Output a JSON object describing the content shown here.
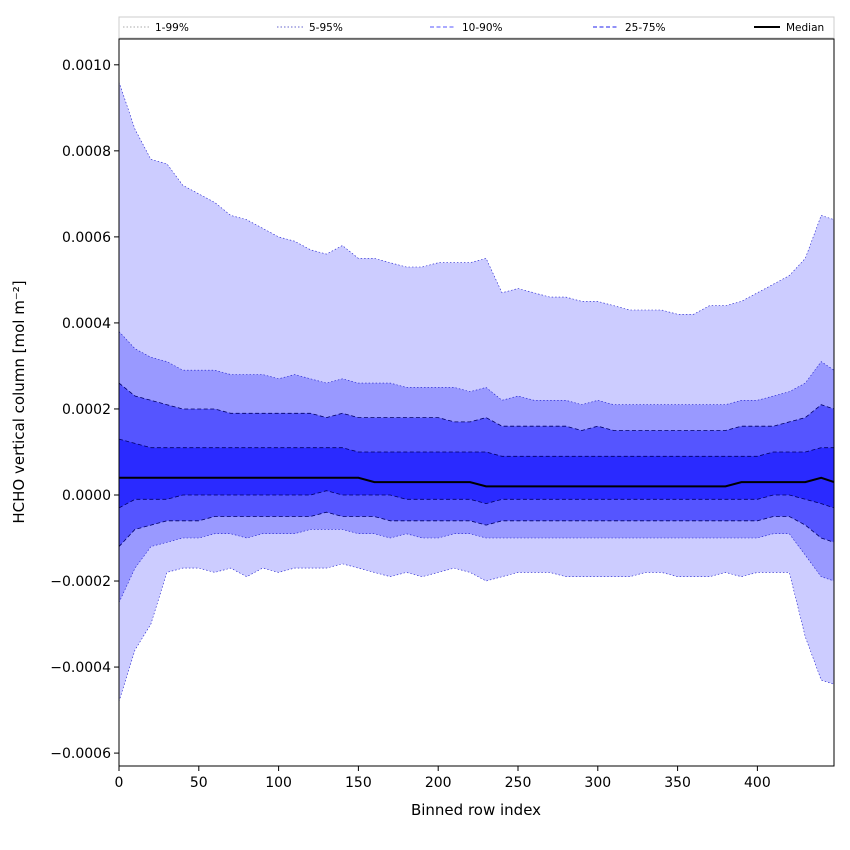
{
  "chart_data": {
    "type": "area",
    "title": "",
    "xlabel": "Binned row index",
    "ylabel": "HCHO vertical column [mol m⁻²]",
    "xlim": [
      0,
      448
    ],
    "ylim": [
      -0.00063,
      0.00106
    ],
    "xticks": [
      0,
      50,
      100,
      150,
      200,
      250,
      300,
      350,
      400
    ],
    "yticks": [
      -0.0006,
      -0.0004,
      -0.0002,
      0.0,
      0.0002,
      0.0004,
      0.0006,
      0.0008,
      0.001
    ],
    "ytick_labels": [
      "−0.0006",
      "−0.0004",
      "−0.0002",
      "0.0000",
      "0.0002",
      "0.0004",
      "0.0006",
      "0.0008",
      "0.0010"
    ],
    "grid": false,
    "legend_placement": "top (above plot, single row)",
    "x": [
      0,
      10,
      20,
      30,
      40,
      50,
      60,
      70,
      80,
      90,
      100,
      110,
      120,
      130,
      140,
      150,
      160,
      170,
      180,
      190,
      200,
      210,
      220,
      230,
      240,
      250,
      260,
      270,
      280,
      290,
      300,
      310,
      320,
      330,
      340,
      350,
      360,
      370,
      380,
      390,
      400,
      410,
      420,
      430,
      440,
      448
    ],
    "series": [
      {
        "name": "1-99%",
        "color": "#ccccff",
        "style": "dotted",
        "lower": [
          -0.00048,
          -0.00036,
          -0.0003,
          -0.00018,
          -0.00017,
          -0.00017,
          -0.00018,
          -0.00017,
          -0.00019,
          -0.00017,
          -0.00018,
          -0.00017,
          -0.00017,
          -0.00017,
          -0.00016,
          -0.00017,
          -0.00018,
          -0.00019,
          -0.00018,
          -0.00019,
          -0.00018,
          -0.00017,
          -0.00018,
          -0.0002,
          -0.00019,
          -0.00018,
          -0.00018,
          -0.00018,
          -0.00019,
          -0.00019,
          -0.00019,
          -0.00019,
          -0.00019,
          -0.00018,
          -0.00018,
          -0.00019,
          -0.00019,
          -0.00019,
          -0.00018,
          -0.00019,
          -0.00018,
          -0.00018,
          -0.00018,
          -0.00033,
          -0.00043,
          -0.00044
        ],
        "upper": [
          0.00096,
          0.00085,
          0.00078,
          0.00077,
          0.00072,
          0.0007,
          0.00068,
          0.00065,
          0.00064,
          0.00062,
          0.0006,
          0.00059,
          0.00057,
          0.00056,
          0.00058,
          0.00055,
          0.00055,
          0.00054,
          0.00053,
          0.00053,
          0.00054,
          0.00054,
          0.00054,
          0.00055,
          0.00047,
          0.00048,
          0.00047,
          0.00046,
          0.00046,
          0.00045,
          0.00045,
          0.00044,
          0.00043,
          0.00043,
          0.00043,
          0.00042,
          0.00042,
          0.00044,
          0.00044,
          0.00045,
          0.00047,
          0.00049,
          0.00051,
          0.00055,
          0.00065,
          0.00064
        ]
      },
      {
        "name": "5-95%",
        "color": "#9999ff",
        "style": "dotted",
        "lower": [
          -0.00025,
          -0.00017,
          -0.00012,
          -0.00011,
          -0.0001,
          -0.0001,
          -9e-05,
          -9e-05,
          -0.0001,
          -9e-05,
          -9e-05,
          -9e-05,
          -8e-05,
          -8e-05,
          -8e-05,
          -9e-05,
          -9e-05,
          -0.0001,
          -9e-05,
          -0.0001,
          -0.0001,
          -9e-05,
          -9e-05,
          -0.0001,
          -0.0001,
          -0.0001,
          -0.0001,
          -0.0001,
          -0.0001,
          -0.0001,
          -0.0001,
          -0.0001,
          -0.0001,
          -0.0001,
          -0.0001,
          -0.0001,
          -0.0001,
          -0.0001,
          -0.0001,
          -0.0001,
          -0.0001,
          -9e-05,
          -9e-05,
          -0.00014,
          -0.00019,
          -0.0002
        ],
        "upper": [
          0.00038,
          0.00034,
          0.00032,
          0.00031,
          0.00029,
          0.00029,
          0.00029,
          0.00028,
          0.00028,
          0.00028,
          0.00027,
          0.00028,
          0.00027,
          0.00026,
          0.00027,
          0.00026,
          0.00026,
          0.00026,
          0.00025,
          0.00025,
          0.00025,
          0.00025,
          0.00024,
          0.00025,
          0.00022,
          0.00023,
          0.00022,
          0.00022,
          0.00022,
          0.00021,
          0.00022,
          0.00021,
          0.00021,
          0.00021,
          0.00021,
          0.00021,
          0.00021,
          0.00021,
          0.00021,
          0.00022,
          0.00022,
          0.00023,
          0.00024,
          0.00026,
          0.00031,
          0.00029
        ]
      },
      {
        "name": "10-90%",
        "color": "#5555ff",
        "style": "dashed",
        "lower": [
          -0.00012,
          -8e-05,
          -7e-05,
          -6e-05,
          -6e-05,
          -6e-05,
          -5e-05,
          -5e-05,
          -5e-05,
          -5e-05,
          -5e-05,
          -5e-05,
          -5e-05,
          -4e-05,
          -5e-05,
          -5e-05,
          -5e-05,
          -6e-05,
          -6e-05,
          -6e-05,
          -6e-05,
          -6e-05,
          -6e-05,
          -7e-05,
          -6e-05,
          -6e-05,
          -6e-05,
          -6e-05,
          -6e-05,
          -6e-05,
          -6e-05,
          -6e-05,
          -6e-05,
          -6e-05,
          -6e-05,
          -6e-05,
          -6e-05,
          -6e-05,
          -6e-05,
          -6e-05,
          -6e-05,
          -5e-05,
          -5e-05,
          -7e-05,
          -0.0001,
          -0.00011
        ],
        "upper": [
          0.00026,
          0.00023,
          0.00022,
          0.00021,
          0.0002,
          0.0002,
          0.0002,
          0.00019,
          0.00019,
          0.00019,
          0.00019,
          0.00019,
          0.00019,
          0.00018,
          0.00019,
          0.00018,
          0.00018,
          0.00018,
          0.00018,
          0.00018,
          0.00018,
          0.00017,
          0.00017,
          0.00018,
          0.00016,
          0.00016,
          0.00016,
          0.00016,
          0.00016,
          0.00015,
          0.00016,
          0.00015,
          0.00015,
          0.00015,
          0.00015,
          0.00015,
          0.00015,
          0.00015,
          0.00015,
          0.00016,
          0.00016,
          0.00016,
          0.00017,
          0.00018,
          0.00021,
          0.0002
        ]
      },
      {
        "name": "25-75%",
        "color": "#2a2aff",
        "style": "dashed",
        "lower": [
          -3e-05,
          -1e-05,
          -1e-05,
          -1e-05,
          0.0,
          0.0,
          0.0,
          0.0,
          0.0,
          0.0,
          0.0,
          0.0,
          0.0,
          1e-05,
          0.0,
          0.0,
          0.0,
          0.0,
          -1e-05,
          -1e-05,
          -1e-05,
          -1e-05,
          -1e-05,
          -2e-05,
          -1e-05,
          -1e-05,
          -1e-05,
          -1e-05,
          -1e-05,
          -1e-05,
          -1e-05,
          -1e-05,
          -1e-05,
          -1e-05,
          -1e-05,
          -1e-05,
          -1e-05,
          -1e-05,
          -1e-05,
          -1e-05,
          -1e-05,
          0.0,
          0.0,
          -1e-05,
          -2e-05,
          -3e-05
        ],
        "upper": [
          0.00013,
          0.00012,
          0.00011,
          0.00011,
          0.00011,
          0.00011,
          0.00011,
          0.00011,
          0.00011,
          0.00011,
          0.00011,
          0.00011,
          0.00011,
          0.00011,
          0.00011,
          0.0001,
          0.0001,
          0.0001,
          0.0001,
          0.0001,
          0.0001,
          0.0001,
          0.0001,
          0.0001,
          9e-05,
          9e-05,
          9e-05,
          9e-05,
          9e-05,
          9e-05,
          9e-05,
          9e-05,
          9e-05,
          9e-05,
          9e-05,
          9e-05,
          9e-05,
          9e-05,
          9e-05,
          9e-05,
          9e-05,
          0.0001,
          0.0001,
          0.0001,
          0.00011,
          0.00011
        ]
      },
      {
        "name": "Median",
        "color": "#000000",
        "style": "solid",
        "values": [
          4e-05,
          4e-05,
          4e-05,
          4e-05,
          4e-05,
          4e-05,
          4e-05,
          4e-05,
          4e-05,
          4e-05,
          4e-05,
          4e-05,
          4e-05,
          4e-05,
          4e-05,
          4e-05,
          3e-05,
          3e-05,
          3e-05,
          3e-05,
          3e-05,
          3e-05,
          3e-05,
          2e-05,
          2e-05,
          2e-05,
          2e-05,
          2e-05,
          2e-05,
          2e-05,
          2e-05,
          2e-05,
          2e-05,
          2e-05,
          2e-05,
          2e-05,
          2e-05,
          2e-05,
          2e-05,
          3e-05,
          3e-05,
          3e-05,
          3e-05,
          3e-05,
          4e-05,
          3e-05
        ]
      }
    ]
  }
}
